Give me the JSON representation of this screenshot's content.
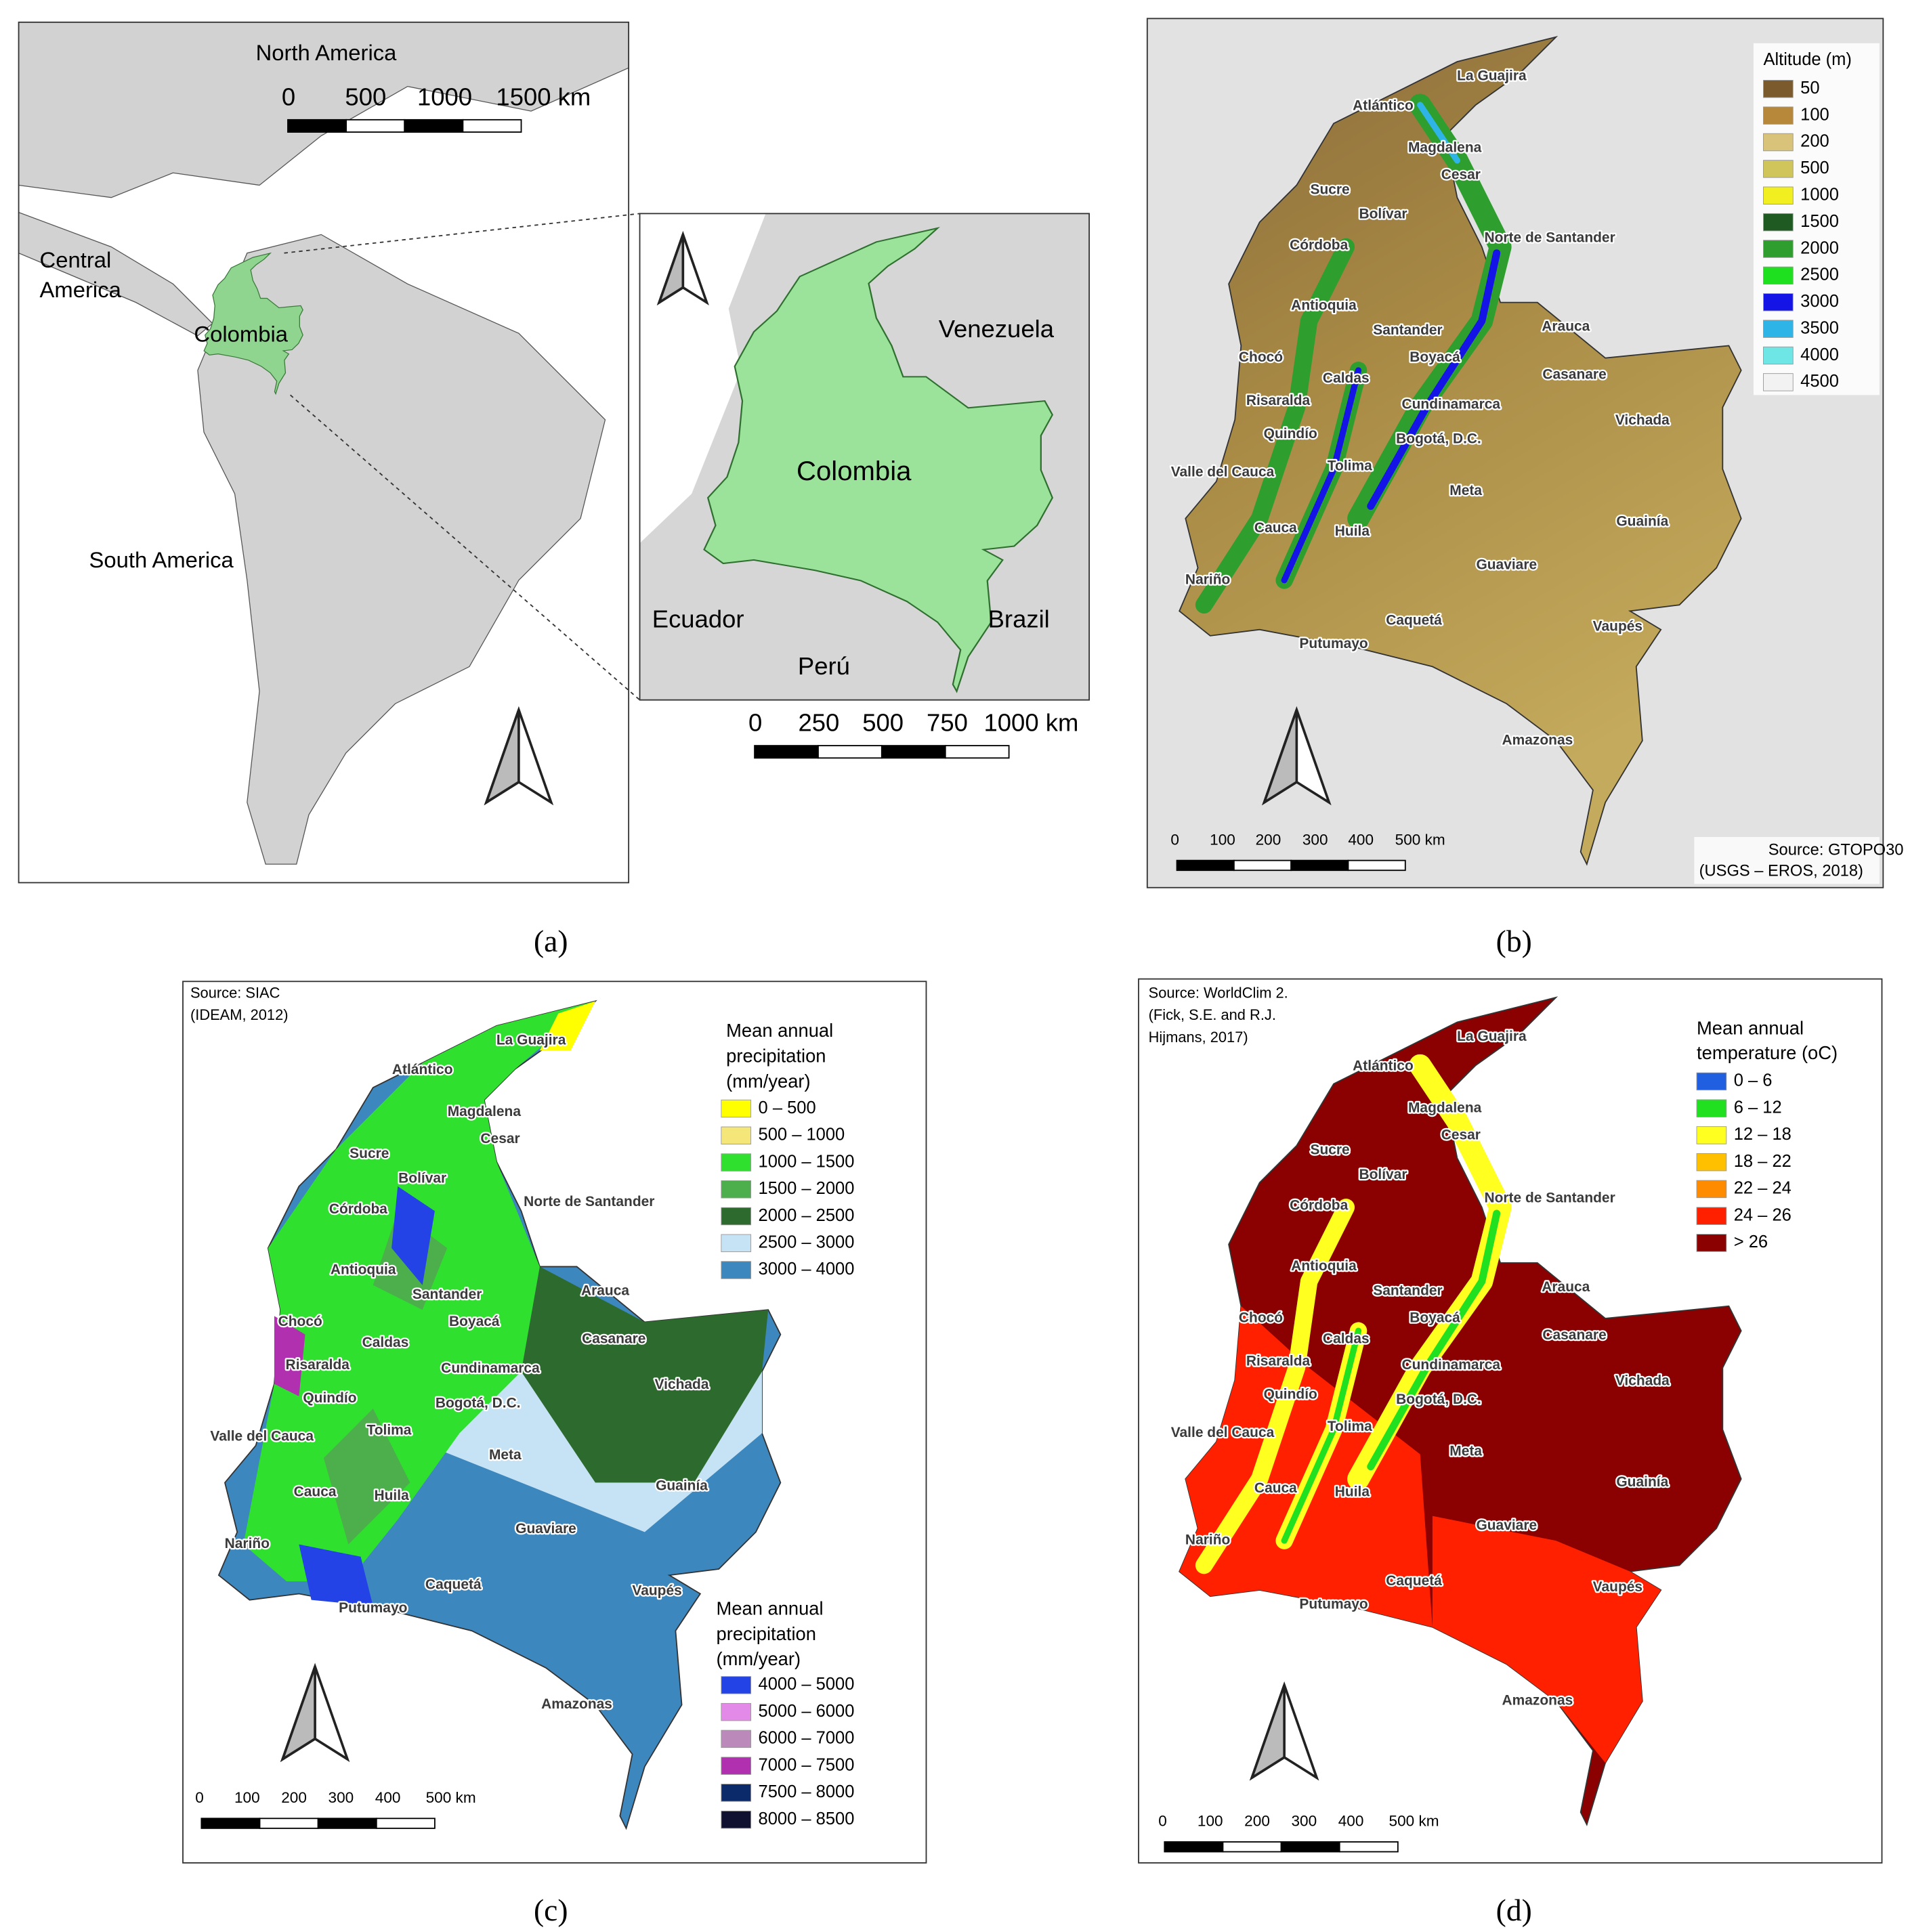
{
  "panel_a": {
    "caption": "(a)",
    "labels": [
      "North America",
      "South America",
      "Colombia"
    ],
    "central_america": [
      "Central",
      "America"
    ],
    "inset_labels": [
      "Colombia",
      "Venezuela",
      "Ecuador",
      "Perú",
      "Brazil"
    ],
    "scale": [
      "0",
      "500",
      "1000",
      "1500 km"
    ],
    "inset_scale": [
      "0",
      "250",
      "500",
      "750",
      "1000 km"
    ]
  },
  "departments": [
    "La Guajira",
    "Atlántico",
    "Magdalena",
    "Cesar",
    "Sucre",
    "Bolívar",
    "Norte de Santander",
    "Córdoba",
    "Antioquia",
    "Santander",
    "Arauca",
    "Chocó",
    "Caldas",
    "Boyacá",
    "Casanare",
    "Risaralda",
    "Cundinamarca",
    "Vichada",
    "Quindío",
    "Bogotá, D.C.",
    "Valle del Cauca",
    "Tolima",
    "Meta",
    "Cauca",
    "Huila",
    "Guainía",
    "Guaviare",
    "Nariño",
    "Caquetá",
    "Vaupés",
    "Putumayo",
    "Amazonas"
  ],
  "panel_b": {
    "caption": "(b)",
    "legend_title": "Altitude (m)",
    "legend": [
      {
        "label": "50",
        "color": "#7b5b2e"
      },
      {
        "label": "100",
        "color": "#b8883a"
      },
      {
        "label": "200",
        "color": "#d9c27a"
      },
      {
        "label": "500",
        "color": "#cfc55a"
      },
      {
        "label": "1000",
        "color": "#f2ef20"
      },
      {
        "label": "1500",
        "color": "#1f5a23"
      },
      {
        "label": "2000",
        "color": "#2e9e2e"
      },
      {
        "label": "2500",
        "color": "#1fe01f"
      },
      {
        "label": "3000",
        "color": "#1414e6"
      },
      {
        "label": "3500",
        "color": "#2fb4e8"
      },
      {
        "label": "4000",
        "color": "#6fe6e6"
      },
      {
        "label": "4500",
        "color": "#f2f2f2"
      }
    ],
    "source": [
      "Source: GTOPO30",
      "(USGS – EROS, 2018)"
    ],
    "scale": [
      "0",
      "100",
      "200",
      "300",
      "400",
      "500 km"
    ]
  },
  "panel_c": {
    "caption": "(c)",
    "source": [
      "Source: SIAC",
      "(IDEAM, 2012)"
    ],
    "legends": [
      {
        "title": [
          "Mean annual",
          "precipitation",
          "(mm/year)"
        ],
        "items": [
          {
            "label": "0 – 500",
            "color": "#ffff00"
          },
          {
            "label": "500 – 1000",
            "color": "#f5e67a"
          },
          {
            "label": "1000 – 1500",
            "color": "#2fe02f"
          },
          {
            "label": "1500 – 2000",
            "color": "#4caf4c"
          },
          {
            "label": "2000 – 2500",
            "color": "#2d6a2d"
          },
          {
            "label": "2500 – 3000",
            "color": "#c6e3f5"
          },
          {
            "label": "3000 – 4000",
            "color": "#3d87bf"
          }
        ]
      },
      {
        "title": [
          "Mean annual",
          "precipitation",
          "(mm/year)"
        ],
        "items": [
          {
            "label": "4000 – 5000",
            "color": "#2443e6"
          },
          {
            "label": "5000 – 6000",
            "color": "#e38ae8"
          },
          {
            "label": "6000 – 7000",
            "color": "#bb8abb"
          },
          {
            "label": "7000 – 7500",
            "color": "#b030b0"
          },
          {
            "label": "7500 – 8000",
            "color": "#0a2a6a"
          },
          {
            "label": "8000 – 8500",
            "color": "#101030"
          }
        ]
      }
    ],
    "scale": [
      "0",
      "100",
      "200",
      "300",
      "400",
      "500 km"
    ]
  },
  "panel_d": {
    "caption": "(d)",
    "source": [
      "Source: WorldClim 2.",
      "(Fick, S.E. and R.J.",
      "Hijmans, 2017)"
    ],
    "legend_title": [
      "Mean annual",
      "temperature (oC)"
    ],
    "legend": [
      {
        "label": "0 – 6",
        "color": "#2060e0"
      },
      {
        "label": "6 – 12",
        "color": "#20e020"
      },
      {
        "label": "12 – 18",
        "color": "#ffff20"
      },
      {
        "label": "18 – 22",
        "color": "#ffc000"
      },
      {
        "label": "22 – 24",
        "color": "#ff8c00"
      },
      {
        "label": "24 – 26",
        "color": "#ff2000"
      },
      {
        "label": "> 26",
        "color": "#8b0000"
      }
    ],
    "scale": [
      "0",
      "100",
      "200",
      "300",
      "400",
      "500 km"
    ]
  }
}
